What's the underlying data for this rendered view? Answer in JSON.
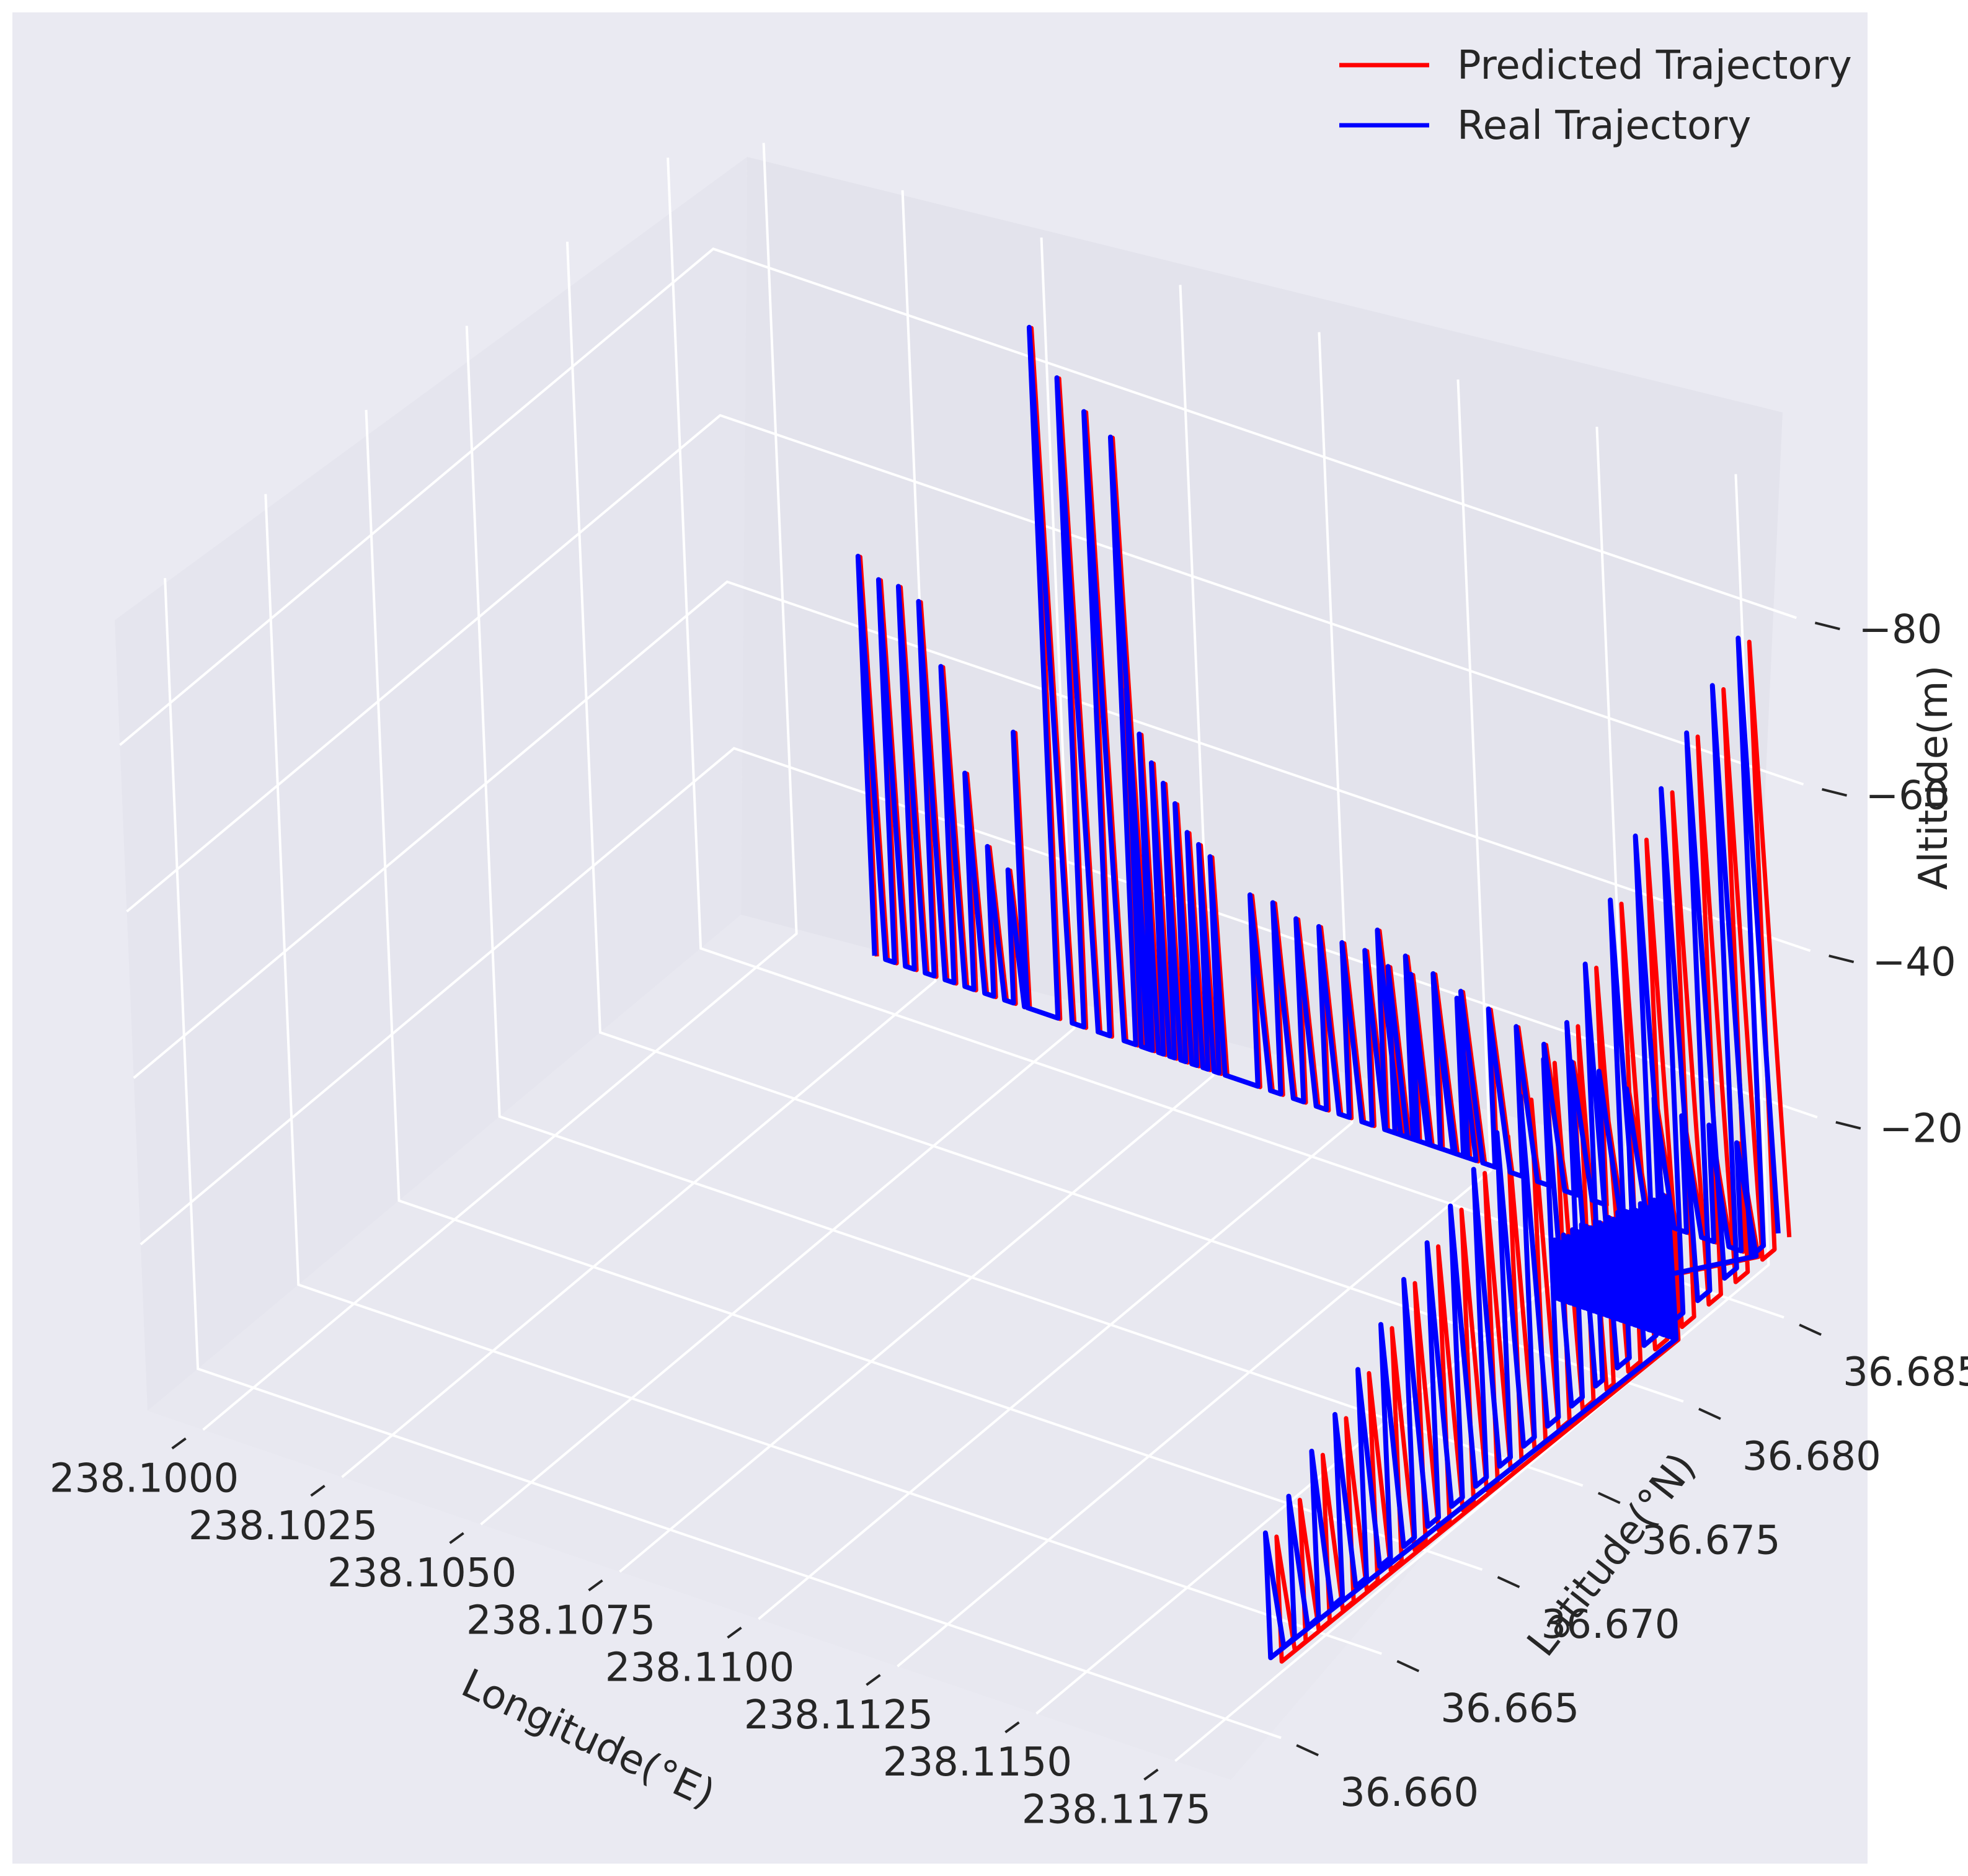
{
  "chart_data": {
    "type": "line3d",
    "title": "",
    "xlabel": "Longitude(°E)",
    "ylabel": "Latitude(°N)",
    "zlabel": "Altitude(m)",
    "xlim": [
      238.099,
      238.1185
    ],
    "ylim": [
      36.6575,
      36.687
    ],
    "zlim": [
      0,
      -95
    ],
    "xticks": [
      238.1,
      238.1025,
      238.105,
      238.1075,
      238.11,
      238.1125,
      238.115,
      238.1175
    ],
    "xtick_labels": [
      "238.1000",
      "238.1025",
      "238.1050",
      "238.1075",
      "238.1100",
      "238.1125",
      "238.1150",
      "238.1175"
    ],
    "yticks": [
      36.66,
      36.665,
      36.67,
      36.675,
      36.68,
      36.685
    ],
    "ytick_labels": [
      "36.660",
      "36.665",
      "36.670",
      "36.675",
      "36.680",
      "36.685"
    ],
    "zticks": [
      -20,
      -40,
      -60,
      -80
    ],
    "ztick_labels": [
      "−20",
      "−40",
      "−60",
      "−80"
    ],
    "legend_position": "top-right",
    "series": [
      {
        "name": "Predicted Trajectory",
        "color": "#ff0000",
        "segments": [
          {
            "x0": 238.1016,
            "x1": 238.1041,
            "y": 36.6865,
            "count": 8,
            "peaks": [
              -50,
              -48,
              -48,
              -47,
              -40,
              -28,
              -20,
              -18
            ],
            "base": -2,
            "offset": 4e-05
          },
          {
            "x0": 238.1043,
            "x1": 238.1047,
            "y": 36.6865,
            "count": 1,
            "peaks": [
              -35
            ],
            "base": -2,
            "offset": 4e-05
          },
          {
            "x0": 238.1049,
            "x1": 238.1063,
            "y": 36.6865,
            "count": 4,
            "peaks": [
              -85,
              -80,
              -77,
              -75
            ],
            "base": -2,
            "offset": 4e-05
          },
          {
            "x0": 238.1064,
            "x1": 238.1078,
            "y": 36.6865,
            "count": 8,
            "peaks": [
              -45,
              -40,
              -37,
              -35,
              -33,
              -30,
              -29,
              -28
            ],
            "base": -2,
            "offset": 4e-05
          },
          {
            "x0": 238.1085,
            "x1": 238.1122,
            "y": 36.6865,
            "count": 10,
            "peaks": [
              -25,
              -25,
              -24,
              -24,
              -23,
              -23,
              -22,
              -22,
              -21,
              -21
            ],
            "base": -2,
            "offset": 4e-05
          },
          {
            "x0": 238.1108,
            "x1": 238.1172,
            "y": 36.6865,
            "count": 14,
            "peaks": [
              -26,
              -24,
              -23,
              -22,
              -21,
              -20,
              -19,
              -18,
              -18,
              -17,
              -17,
              -16,
              -16,
              -15
            ],
            "base": -2,
            "offset": 4e-05
          },
          {
            "x0": 238.1157,
            "x1": 238.1178,
            "y": 36.6815,
            "count": 26,
            "peaks": [
              -10,
              -10,
              -11,
              -11,
              -12,
              -12,
              -13,
              -13,
              -13,
              -14,
              -14,
              -14,
              -15,
              -15,
              -16,
              -16,
              -16,
              -17,
              -17,
              -18,
              -18,
              -18,
              -19,
              -19,
              -20,
              -20
            ],
            "base": -3,
            "offset": 4e-05
          },
          {
            "x0": 238.1178,
            "x1": 238.1178,
            "y": 36.6615,
            "y1": 36.677,
            "count": 14,
            "peaks": [
              -20,
              -22,
              -25,
              -27,
              -30,
              -33,
              -36,
              -38,
              -40,
              -42,
              -44,
              -46,
              -48,
              -50
            ],
            "base": -5,
            "offset": 0.0002
          },
          {
            "x0": 238.1178,
            "x1": 238.1178,
            "y": 36.678,
            "y1": 36.686,
            "count": 7,
            "peaks": [
              -55,
              -60,
              -65,
              -68,
              -72,
              -75,
              -78
            ],
            "base": -5,
            "offset": 0.0002
          }
        ]
      },
      {
        "name": "Real Trajectory",
        "color": "#0000ff",
        "segments": [
          {
            "x0": 238.1016,
            "x1": 238.1041,
            "y": 36.6865,
            "count": 8,
            "peaks": [
              -50,
              -48,
              -48,
              -47,
              -40,
              -28,
              -20,
              -18
            ],
            "base": -2,
            "offset": 0
          },
          {
            "x0": 238.1043,
            "x1": 238.1047,
            "y": 36.6865,
            "count": 1,
            "peaks": [
              -35
            ],
            "base": -2,
            "offset": 0
          },
          {
            "x0": 238.1049,
            "x1": 238.1063,
            "y": 36.6865,
            "count": 4,
            "peaks": [
              -85,
              -80,
              -77,
              -75
            ],
            "base": -2,
            "offset": 0
          },
          {
            "x0": 238.1064,
            "x1": 238.1078,
            "y": 36.6865,
            "count": 8,
            "peaks": [
              -45,
              -40,
              -37,
              -35,
              -33,
              -30,
              -29,
              -28
            ],
            "base": -2,
            "offset": 0
          },
          {
            "x0": 238.1085,
            "x1": 238.1122,
            "y": 36.6865,
            "count": 10,
            "peaks": [
              -25,
              -25,
              -24,
              -24,
              -23,
              -23,
              -22,
              -22,
              -21,
              -21
            ],
            "base": -2,
            "offset": 0
          },
          {
            "x0": 238.1108,
            "x1": 238.1172,
            "y": 36.6865,
            "count": 14,
            "peaks": [
              -26,
              -24,
              -23,
              -22,
              -21,
              -20,
              -19,
              -18,
              -18,
              -17,
              -17,
              -16,
              -16,
              -15
            ],
            "base": -2,
            "offset": 0
          },
          {
            "x0": 238.1157,
            "x1": 238.1178,
            "y": 36.6815,
            "count": 26,
            "peaks": [
              -10,
              -10,
              -11,
              -11,
              -12,
              -12,
              -13,
              -13,
              -13,
              -14,
              -14,
              -14,
              -15,
              -15,
              -16,
              -16,
              -16,
              -17,
              -17,
              -18,
              -18,
              -18,
              -19,
              -19,
              -20,
              -20
            ],
            "base": -3,
            "offset": 0
          },
          {
            "x0": 238.1178,
            "x1": 238.1178,
            "y": 36.6615,
            "y1": 36.677,
            "count": 14,
            "peaks": [
              -20,
              -22,
              -25,
              -27,
              -30,
              -33,
              -36,
              -38,
              -40,
              -42,
              -44,
              -46,
              -48,
              -50
            ],
            "base": -5,
            "offset": 0
          },
          {
            "x0": 238.1178,
            "x1": 238.1178,
            "y": 36.678,
            "y1": 36.686,
            "count": 7,
            "peaks": [
              -55,
              -60,
              -65,
              -68,
              -72,
              -75,
              -78
            ],
            "base": -5,
            "offset": 0
          }
        ]
      }
    ]
  }
}
